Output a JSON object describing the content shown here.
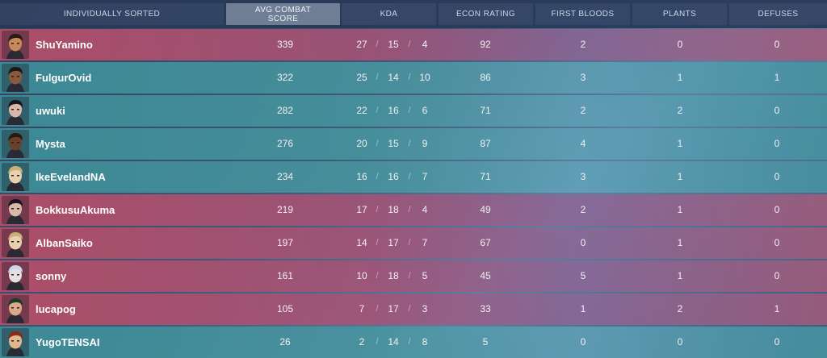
{
  "header": {
    "name": "INDIVIDUALLY SORTED",
    "acs": "AVG COMBAT SCORE",
    "kda": "KDA",
    "econ": "ECON RATING",
    "fb": "FIRST BLOODS",
    "plants": "PLANTS",
    "defuses": "DEFUSES"
  },
  "kda_separator": "/",
  "colors": {
    "red_team": "#b04e68",
    "blue_team": "#3e8c98"
  },
  "players": [
    {
      "name": "ShuYamino",
      "team": "red",
      "agent": "agent-phoenix-portrait",
      "acs": "339",
      "k": "27",
      "d": "15",
      "a": "4",
      "econ": "92",
      "fb": "2",
      "plants": "0",
      "defuses": "0"
    },
    {
      "name": "FulgurOvid",
      "team": "blue",
      "agent": "agent-raze-portrait",
      "acs": "322",
      "k": "25",
      "d": "14",
      "a": "10",
      "econ": "86",
      "fb": "3",
      "plants": "1",
      "defuses": "1"
    },
    {
      "name": "uwuki",
      "team": "blue",
      "agent": "agent-reyna-portrait",
      "acs": "282",
      "k": "22",
      "d": "16",
      "a": "6",
      "econ": "71",
      "fb": "2",
      "plants": "2",
      "defuses": "0"
    },
    {
      "name": "Mysta",
      "team": "blue",
      "agent": "agent-phoenix-portrait",
      "acs": "276",
      "k": "20",
      "d": "15",
      "a": "9",
      "econ": "87",
      "fb": "4",
      "plants": "1",
      "defuses": "0"
    },
    {
      "name": "IkeEvelandNA",
      "team": "blue",
      "agent": "agent-sova-portrait",
      "acs": "234",
      "k": "16",
      "d": "16",
      "a": "7",
      "econ": "71",
      "fb": "3",
      "plants": "1",
      "defuses": "0"
    },
    {
      "name": "BokkusuAkuma",
      "team": "red",
      "agent": "agent-reyna-portrait",
      "acs": "219",
      "k": "17",
      "d": "18",
      "a": "4",
      "econ": "49",
      "fb": "2",
      "plants": "1",
      "defuses": "0"
    },
    {
      "name": "AlbanSaiko",
      "team": "red",
      "agent": "agent-sova-portrait",
      "acs": "197",
      "k": "14",
      "d": "17",
      "a": "7",
      "econ": "67",
      "fb": "0",
      "plants": "1",
      "defuses": "0"
    },
    {
      "name": "sonny",
      "team": "red",
      "agent": "agent-jett-portrait",
      "acs": "161",
      "k": "10",
      "d": "18",
      "a": "5",
      "econ": "45",
      "fb": "5",
      "plants": "1",
      "defuses": "0"
    },
    {
      "name": "lucapog",
      "team": "red",
      "agent": "agent-sage-portrait",
      "acs": "105",
      "k": "7",
      "d": "17",
      "a": "3",
      "econ": "33",
      "fb": "1",
      "plants": "2",
      "defuses": "1"
    },
    {
      "name": "YugoTENSAI",
      "team": "blue",
      "agent": "agent-killjoy-portrait",
      "acs": "26",
      "k": "2",
      "d": "14",
      "a": "8",
      "econ": "5",
      "fb": "0",
      "plants": "0",
      "defuses": "0"
    }
  ]
}
